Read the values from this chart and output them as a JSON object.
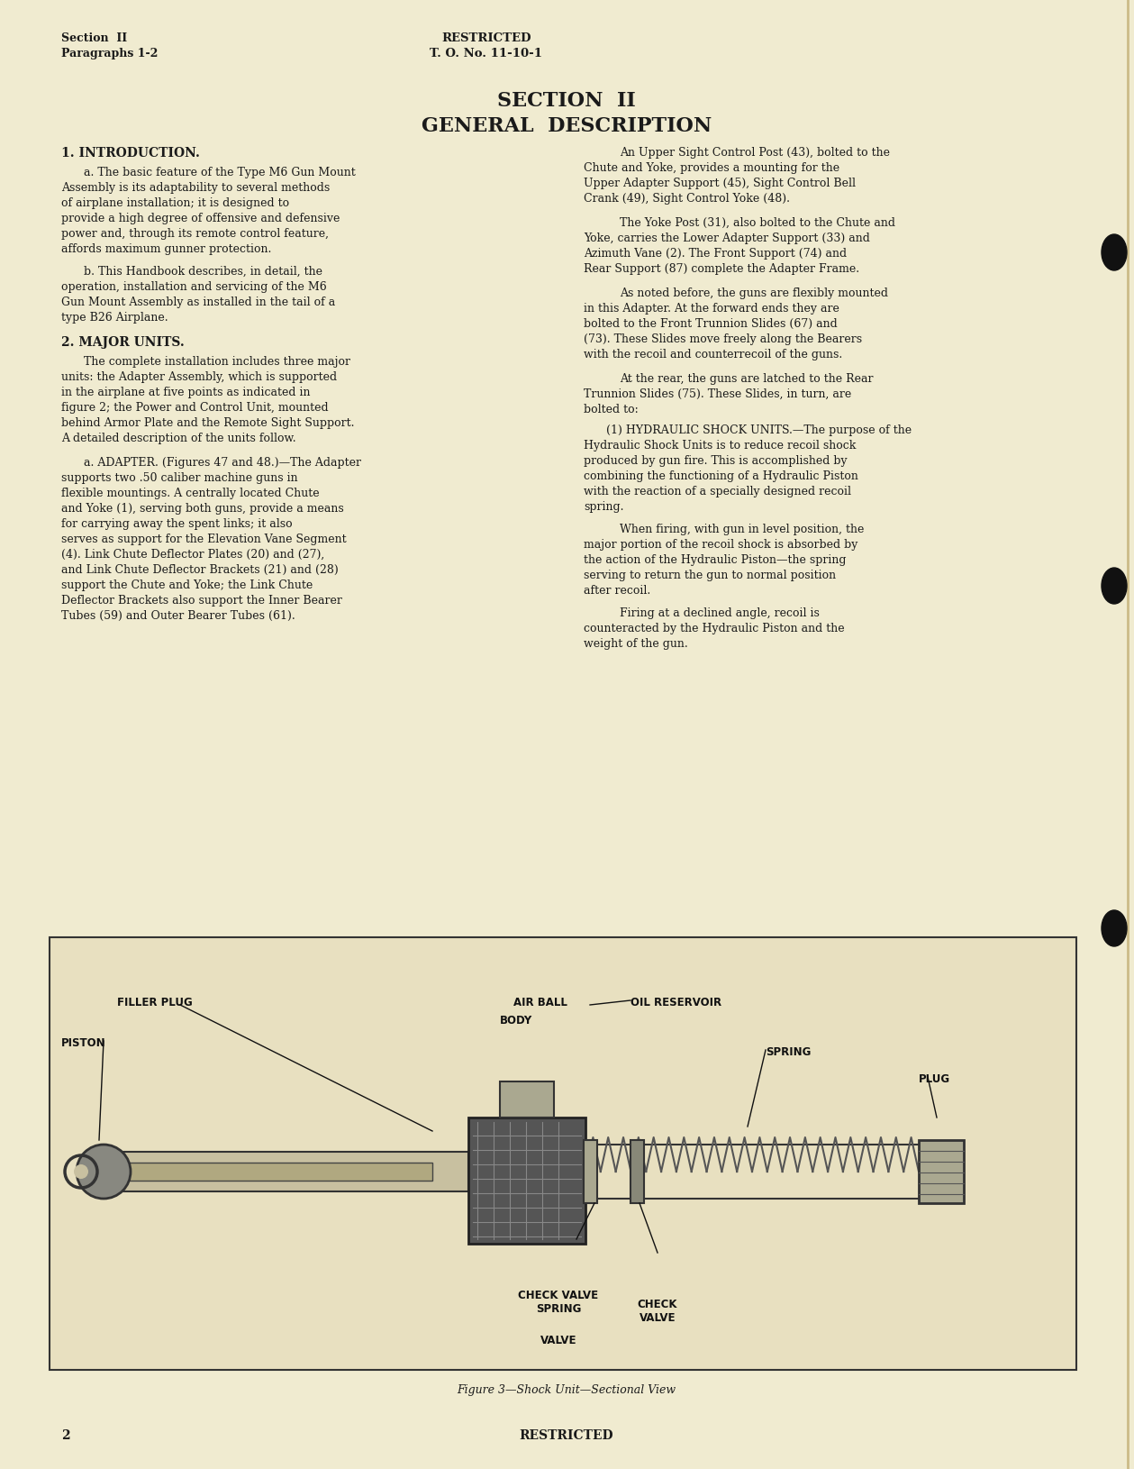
{
  "bg_color": "#f5f0dc",
  "page_color": "#f0ebd0",
  "header_left_line1": "Section  II",
  "header_left_line2": "Paragraphs 1-2",
  "header_center_line1": "RESTRICTED",
  "header_center_line2": "T. O. No. 11-10-1",
  "section_title_line1": "SECTION  II",
  "section_title_line2": "GENERAL  DESCRIPTION",
  "intro_heading": "1. INTRODUCTION.",
  "intro_para_a": "a. The basic feature of the Type M6 Gun Mount Assembly is its adaptability to several methods of airplane installation; it is designed to provide a high degree of offensive and defensive power and, through its remote control feature, affords maximum gunner protection.",
  "intro_para_b": "b. This Handbook describes, in detail, the operation, installation and servicing of the M6 Gun Mount Assembly as installed in the tail of a type B26 Airplane.",
  "major_units_heading": "2. MAJOR UNITS.",
  "major_units_para1": "The complete installation includes three major units: the Adapter Assembly, which is supported in the airplane at five points as indicated in figure 2; the Power and Control Unit, mounted behind Armor Plate and the Remote Sight Support. A detailed description of the units follow.",
  "adapter_heading": "a. ADAPTER. (Figures 47 and 48.)—The Adapter supports two .50 caliber machine guns in flexible mountings. A centrally located Chute and Yoke (1), serving both guns, provide a means for carrying away the spent links; it also serves as support for the Elevation Vane Segment (4). Link Chute Deflector Plates (20) and (27), and Link Chute Deflector Brackets (21) and (28) support the Chute and Yoke; the Link Chute Deflector Brackets also support the Inner Bearer Tubes (59) and Outer Bearer Tubes (61).",
  "right_col_para1": "An Upper Sight Control Post (43), bolted to the Chute and Yoke, provides a mounting for the Upper Adapter Support (45), Sight Control Bell Crank (49), Sight Control Yoke (48).",
  "right_col_para2": "The Yoke Post (31), also bolted to the Chute and Yoke, carries the Lower Adapter Support (33) and Azimuth Vane (2). The Front Support (74) and Rear Support (87) complete the Adapter Frame.",
  "right_col_para3": "As noted before, the guns are flexibly mounted in this Adapter. At the forward ends they are bolted to the Front Trunnion Slides (67) and (73). These Slides move freely along the Bearers with the recoil and counterrecoil of the guns.",
  "right_col_para4": "At the rear, the guns are latched to the Rear Trunnion Slides (75). These Slides, in turn, are bolted to:",
  "hydraulic_heading": "(1) HYDRAULIC SHOCK UNITS.—The purpose of the Hydraulic Shock Units is to reduce recoil shock produced by gun fire. This is accomplished by combining the functioning of a Hydraulic Piston with the reaction of a specially designed recoil spring.",
  "hydraulic_para2": "When firing, with gun in level position, the major portion of the recoil shock is absorbed by the action of the Hydraulic Piston—the spring serving to return the gun to normal position after recoil.",
  "hydraulic_para3": "Firing at a declined angle, recoil is counteracted by the Hydraulic Piston and the weight of the gun.",
  "figure_caption": "Figure 3—Shock Unit—Sectional View",
  "footer_page": "2",
  "footer_center": "RESTRICTED",
  "text_color": "#1a1a1a",
  "diagram_labels": [
    "OIL RESERVOIR",
    "FILLER PLUG",
    "AIR BALL",
    "BODY",
    "PISTON",
    "SPRING",
    "CHECK VALVE\nSPRING",
    "CHECK\nVALVE",
    "PLUG",
    "VALVE"
  ]
}
